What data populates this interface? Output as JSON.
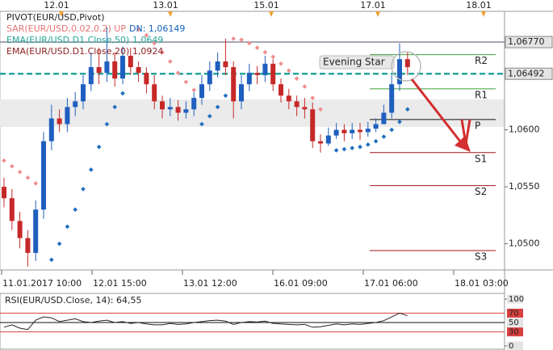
{
  "chart_data": [
    {
      "type": "candlestick",
      "legend": [
        {
          "text": "PIVOT(EUR/USD,Pivot)",
          "color": "#222222"
        },
        {
          "text": "SAR(EUR/USD,0.02,0.2) UP",
          "color": "#e57373"
        },
        {
          "text": "DN: 1,06149",
          "color": "#1565c0"
        },
        {
          "text": "EMA(EUR/USD.D1.Close,50) 1,0649",
          "color": "#26a69a"
        },
        {
          "text": "EMA(EUR/USD.D1.Close,20) 1,0924",
          "color": "#8d2222"
        }
      ],
      "date_markers": [
        "12.01",
        "13.01",
        "15.01",
        "17.01",
        "18.01"
      ],
      "time_labels": [
        "11.01.2017 10:00",
        "12.01 15:00",
        "13.01 12:00",
        "16.01 09:00",
        "17.01 06:00",
        "18.01 03:00"
      ],
      "ylim": [
        1.0477,
        1.0704
      ],
      "yticks": [
        {
          "value": 1.06,
          "label": "1,0600"
        },
        {
          "value": 1.055,
          "label": "1,0550"
        },
        {
          "value": 1.05,
          "label": "1,0500"
        }
      ],
      "price_labels": [
        {
          "value": 1.0677,
          "label": "1,06770"
        },
        {
          "value": 1.06492,
          "label": "1,06492"
        }
      ],
      "up_color": "#1f5fbf",
      "down_color": "#c62828",
      "open": [
        1.055,
        1.054,
        1.052,
        1.0505,
        1.0492,
        1.053,
        1.059,
        1.061,
        1.0605,
        1.062,
        1.0625,
        1.064,
        1.0655,
        1.065,
        1.066,
        1.0645,
        1.0665,
        1.0655,
        1.065,
        1.064,
        1.0625,
        1.0618,
        1.062,
        1.0615,
        1.0618,
        1.0628,
        1.064,
        1.0652,
        1.066,
        1.0655,
        1.0625,
        1.064,
        1.065,
        1.0648,
        1.0658,
        1.064,
        1.063,
        1.0625,
        1.062,
        1.0618,
        1.059,
        1.0588,
        1.0595,
        1.06,
        1.0597,
        1.06,
        1.0598,
        1.0601,
        1.0605,
        1.0615,
        1.064,
        1.0662
      ],
      "high": [
        1.0558,
        1.0548,
        1.0528,
        1.0512,
        1.0538,
        1.0598,
        1.0622,
        1.0618,
        1.0628,
        1.0633,
        1.0648,
        1.0668,
        1.0672,
        1.069,
        1.0668,
        1.0673,
        1.0672,
        1.066,
        1.0655,
        1.0648,
        1.063,
        1.0628,
        1.0626,
        1.0625,
        1.0635,
        1.0648,
        1.066,
        1.0668,
        1.068,
        1.066,
        1.0648,
        1.0658,
        1.0656,
        1.0665,
        1.0662,
        1.0645,
        1.0636,
        1.063,
        1.0628,
        1.0624,
        1.0596,
        1.0602,
        1.0606,
        1.0605,
        1.0606,
        1.0606,
        1.0607,
        1.061,
        1.0622,
        1.0648,
        1.0676,
        1.0668
      ],
      "low": [
        1.0532,
        1.0512,
        1.0496,
        1.048,
        1.0485,
        1.0522,
        1.0582,
        1.0598,
        1.0598,
        1.0612,
        1.0618,
        1.0634,
        1.064,
        1.0642,
        1.0638,
        1.064,
        1.0648,
        1.0642,
        1.0632,
        1.0618,
        1.061,
        1.0612,
        1.0608,
        1.061,
        1.0612,
        1.0622,
        1.0634,
        1.0646,
        1.0648,
        1.061,
        1.0618,
        1.0634,
        1.064,
        1.0642,
        1.0634,
        1.0624,
        1.0618,
        1.0612,
        1.061,
        1.0584,
        1.058,
        1.0586,
        1.0592,
        1.059,
        1.0592,
        1.0591,
        1.0594,
        1.0598,
        1.0606,
        1.061,
        1.0634,
        1.0648
      ],
      "close": [
        1.054,
        1.052,
        1.0505,
        1.0492,
        1.053,
        1.059,
        1.061,
        1.0605,
        1.062,
        1.0625,
        1.064,
        1.0655,
        1.065,
        1.066,
        1.0645,
        1.0665,
        1.0655,
        1.065,
        1.064,
        1.0625,
        1.0618,
        1.062,
        1.0615,
        1.0618,
        1.0628,
        1.064,
        1.0652,
        1.066,
        1.0655,
        1.0625,
        1.064,
        1.065,
        1.0648,
        1.0658,
        1.064,
        1.063,
        1.0625,
        1.062,
        1.0618,
        1.059,
        1.0588,
        1.0595,
        1.06,
        1.0597,
        1.06,
        1.0598,
        1.0601,
        1.0605,
        1.0615,
        1.064,
        1.0662,
        1.0655
      ],
      "sar": [
        1.0573,
        1.0568,
        1.0563,
        1.0558,
        1.0553,
        null,
        1.0486,
        1.05,
        1.0515,
        1.053,
        1.0548,
        1.0565,
        1.0585,
        1.0605,
        1.062,
        1.0632,
        null,
        1.0688,
        1.0683,
        1.0676,
        1.0668,
        1.066,
        1.065,
        1.0642,
        1.0635,
        1.0605,
        1.0612,
        1.062,
        1.063,
        1.068,
        1.0679,
        1.0676,
        1.0672,
        1.0668,
        1.0664,
        1.0658,
        1.0652,
        1.0645,
        1.0638,
        1.0628,
        1.0618,
        null,
        1.0582,
        1.0583,
        1.0584,
        1.0585,
        1.0587,
        1.059,
        1.0594,
        1.06,
        1.0607,
        1.0618
      ],
      "pivots": [
        {
          "name": "R2",
          "value": 1.0666,
          "color": "#3aa03a"
        },
        {
          "name": "R1",
          "value": 1.0636,
          "color": "#3aa03a"
        },
        {
          "name": "P",
          "value": 1.0609,
          "color": "#111111"
        },
        {
          "name": "S1",
          "value": 1.058,
          "color": "#a31515"
        },
        {
          "name": "S2",
          "value": 1.0551,
          "color": "#a31515"
        },
        {
          "name": "S3",
          "value": 1.0494,
          "color": "#a31515"
        }
      ],
      "annotation": "Evening Star"
    },
    {
      "type": "line",
      "title": "RSI(EUR/USD.Close, 14): 64,55",
      "ylim": [
        0,
        100
      ],
      "yticks": [
        100,
        70,
        50,
        30,
        0
      ],
      "color": "#222222",
      "values": [
        40,
        45,
        38,
        35,
        55,
        62,
        60,
        52,
        55,
        58,
        52,
        50,
        53,
        55,
        50,
        52,
        48,
        50,
        47,
        45,
        45,
        48,
        46,
        47,
        50,
        52,
        54,
        55,
        53,
        46,
        50,
        52,
        51,
        53,
        48,
        47,
        46,
        45,
        46,
        40,
        41,
        44,
        47,
        45,
        47,
        46,
        48,
        50,
        54,
        62,
        70,
        64.55
      ]
    }
  ]
}
